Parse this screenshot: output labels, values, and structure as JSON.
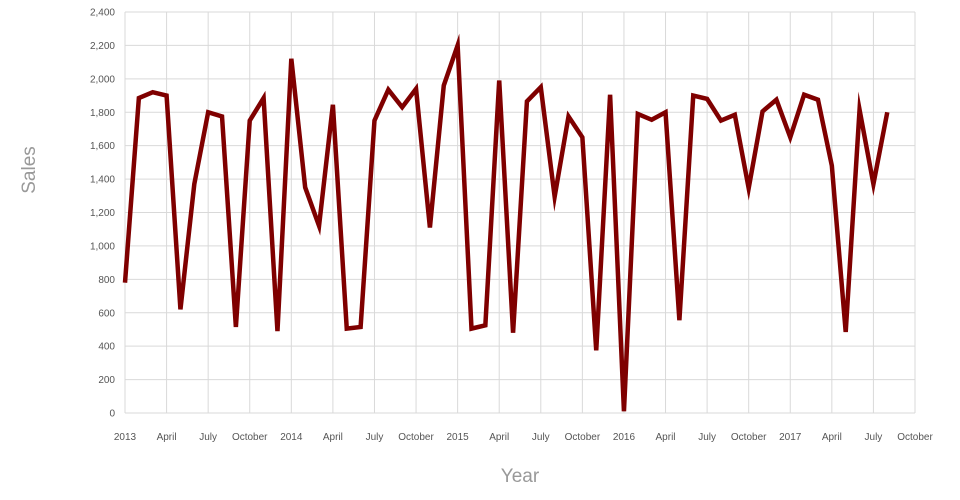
{
  "chart_data": {
    "type": "line",
    "title": "",
    "xlabel": "Year",
    "ylabel": "Sales",
    "ylim": [
      0,
      2400
    ],
    "yticks": [
      0,
      200,
      400,
      600,
      800,
      1000,
      1200,
      1400,
      1600,
      1800,
      2000,
      2200,
      2400
    ],
    "ytick_labels": [
      "0",
      "200",
      "400",
      "600",
      "800",
      "1,000",
      "1,200",
      "1,400",
      "1,600",
      "1,800",
      "2,000",
      "2,200",
      "2,400"
    ],
    "xticks": [
      {
        "month_index": 0,
        "label": "2013"
      },
      {
        "month_index": 3,
        "label": "April"
      },
      {
        "month_index": 6,
        "label": "July"
      },
      {
        "month_index": 9,
        "label": "October"
      },
      {
        "month_index": 12,
        "label": "2014"
      },
      {
        "month_index": 15,
        "label": "April"
      },
      {
        "month_index": 18,
        "label": "July"
      },
      {
        "month_index": 21,
        "label": "October"
      },
      {
        "month_index": 24,
        "label": "2015"
      },
      {
        "month_index": 27,
        "label": "April"
      },
      {
        "month_index": 30,
        "label": "July"
      },
      {
        "month_index": 33,
        "label": "October"
      },
      {
        "month_index": 36,
        "label": "2016"
      },
      {
        "month_index": 39,
        "label": "April"
      },
      {
        "month_index": 42,
        "label": "July"
      },
      {
        "month_index": 45,
        "label": "October"
      },
      {
        "month_index": 48,
        "label": "2017"
      },
      {
        "month_index": 51,
        "label": "April"
      },
      {
        "month_index": 54,
        "label": "July"
      },
      {
        "month_index": 57,
        "label": "October"
      }
    ],
    "x_range": [
      0,
      57
    ],
    "grid": true,
    "legend": "none",
    "series": [
      {
        "color": "#7f0000",
        "values": [
          780,
          1885,
          1920,
          1900,
          620,
          1370,
          1800,
          1775,
          515,
          1750,
          1885,
          490,
          2120,
          1350,
          1120,
          1845,
          505,
          515,
          1750,
          1935,
          1830,
          1940,
          1110,
          1960,
          2200,
          505,
          525,
          1990,
          480,
          1865,
          1950,
          1295,
          1775,
          1650,
          375,
          1905,
          10,
          1790,
          1755,
          1800,
          555,
          1900,
          1880,
          1750,
          1785,
          1345,
          1805,
          1875,
          1650,
          1905,
          1875,
          1480,
          485,
          1815,
          1370,
          1800
        ]
      }
    ]
  }
}
